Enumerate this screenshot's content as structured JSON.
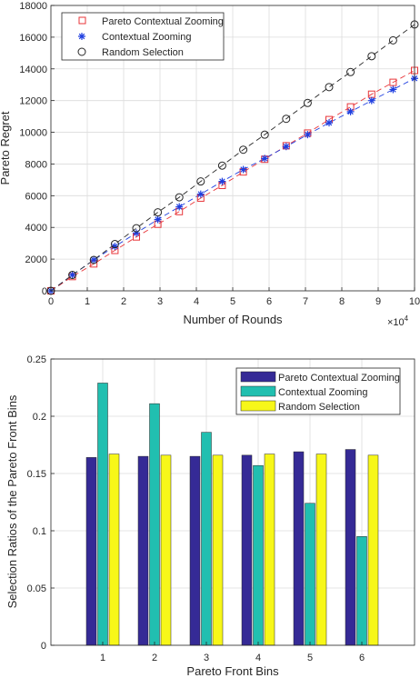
{
  "chart_data": [
    {
      "type": "line",
      "xlabel": "Number of Rounds",
      "ylabel": "Pareto Regret",
      "x_multiplier_label": "×10",
      "x_multiplier_exp": "4",
      "xlim": [
        0,
        100000
      ],
      "ylim": [
        0,
        18000
      ],
      "xticks": [
        0,
        10000,
        20000,
        30000,
        40000,
        50000,
        60000,
        70000,
        80000,
        90000,
        100000
      ],
      "xtick_labels": [
        "0",
        "1",
        "2",
        "3",
        "4",
        "5",
        "6",
        "7",
        "8",
        "9",
        "10"
      ],
      "yticks": [
        0,
        2000,
        4000,
        6000,
        8000,
        10000,
        12000,
        14000,
        16000,
        18000
      ],
      "ytick_labels": [
        "0",
        "2000",
        "4000",
        "6000",
        "8000",
        "10000",
        "12000",
        "14000",
        "16000",
        "18000"
      ],
      "grid": true,
      "legend_position": "top-left",
      "x": [
        0,
        5900,
        11800,
        17600,
        23500,
        29400,
        35300,
        41200,
        47100,
        52900,
        58800,
        64700,
        70600,
        76500,
        82400,
        88200,
        94100,
        100000
      ],
      "series": [
        {
          "name": "Pareto Contextual Zooming",
          "color": "#e8363a",
          "marker": "square",
          "values": [
            0,
            900,
            1700,
            2550,
            3400,
            4200,
            5000,
            5850,
            6650,
            7500,
            8300,
            9150,
            9950,
            10800,
            11600,
            12400,
            13150,
            13900
          ]
        },
        {
          "name": "Contextual Zooming",
          "color": "#1f3fe0",
          "marker": "star",
          "values": [
            0,
            1000,
            1950,
            2800,
            3650,
            4500,
            5300,
            6100,
            6900,
            7650,
            8350,
            9100,
            9850,
            10600,
            11300,
            12000,
            12700,
            13400
          ]
        },
        {
          "name": "Random Selection",
          "color": "#262626",
          "marker": "circle",
          "values": [
            0,
            1000,
            1950,
            2950,
            3950,
            4950,
            5900,
            6900,
            7900,
            8900,
            9850,
            10850,
            11850,
            12850,
            13800,
            14800,
            15800,
            16800
          ]
        }
      ]
    },
    {
      "type": "bar",
      "xlabel": "Pareto Front Bins",
      "ylabel": "Selection Ratios of the Pareto Front Bins",
      "categories": [
        "1",
        "2",
        "3",
        "4",
        "5",
        "6"
      ],
      "ylim": [
        0,
        0.25
      ],
      "yticks": [
        0,
        0.05,
        0.1,
        0.15,
        0.2,
        0.25
      ],
      "ytick_labels": [
        "0",
        "0.05",
        "0.1",
        "0.15",
        "0.2",
        "0.25"
      ],
      "grid": true,
      "legend_position": "top-right",
      "series": [
        {
          "name": "Pareto Contextual Zooming",
          "color": "#352a96",
          "values": [
            0.164,
            0.165,
            0.165,
            0.166,
            0.169,
            0.171
          ]
        },
        {
          "name": "Contextual Zooming",
          "color": "#21bfb0",
          "values": [
            0.229,
            0.211,
            0.186,
            0.157,
            0.124,
            0.095
          ]
        },
        {
          "name": "Random Selection",
          "color": "#f7f719",
          "values": [
            0.167,
            0.166,
            0.166,
            0.167,
            0.167,
            0.166
          ]
        }
      ]
    }
  ]
}
